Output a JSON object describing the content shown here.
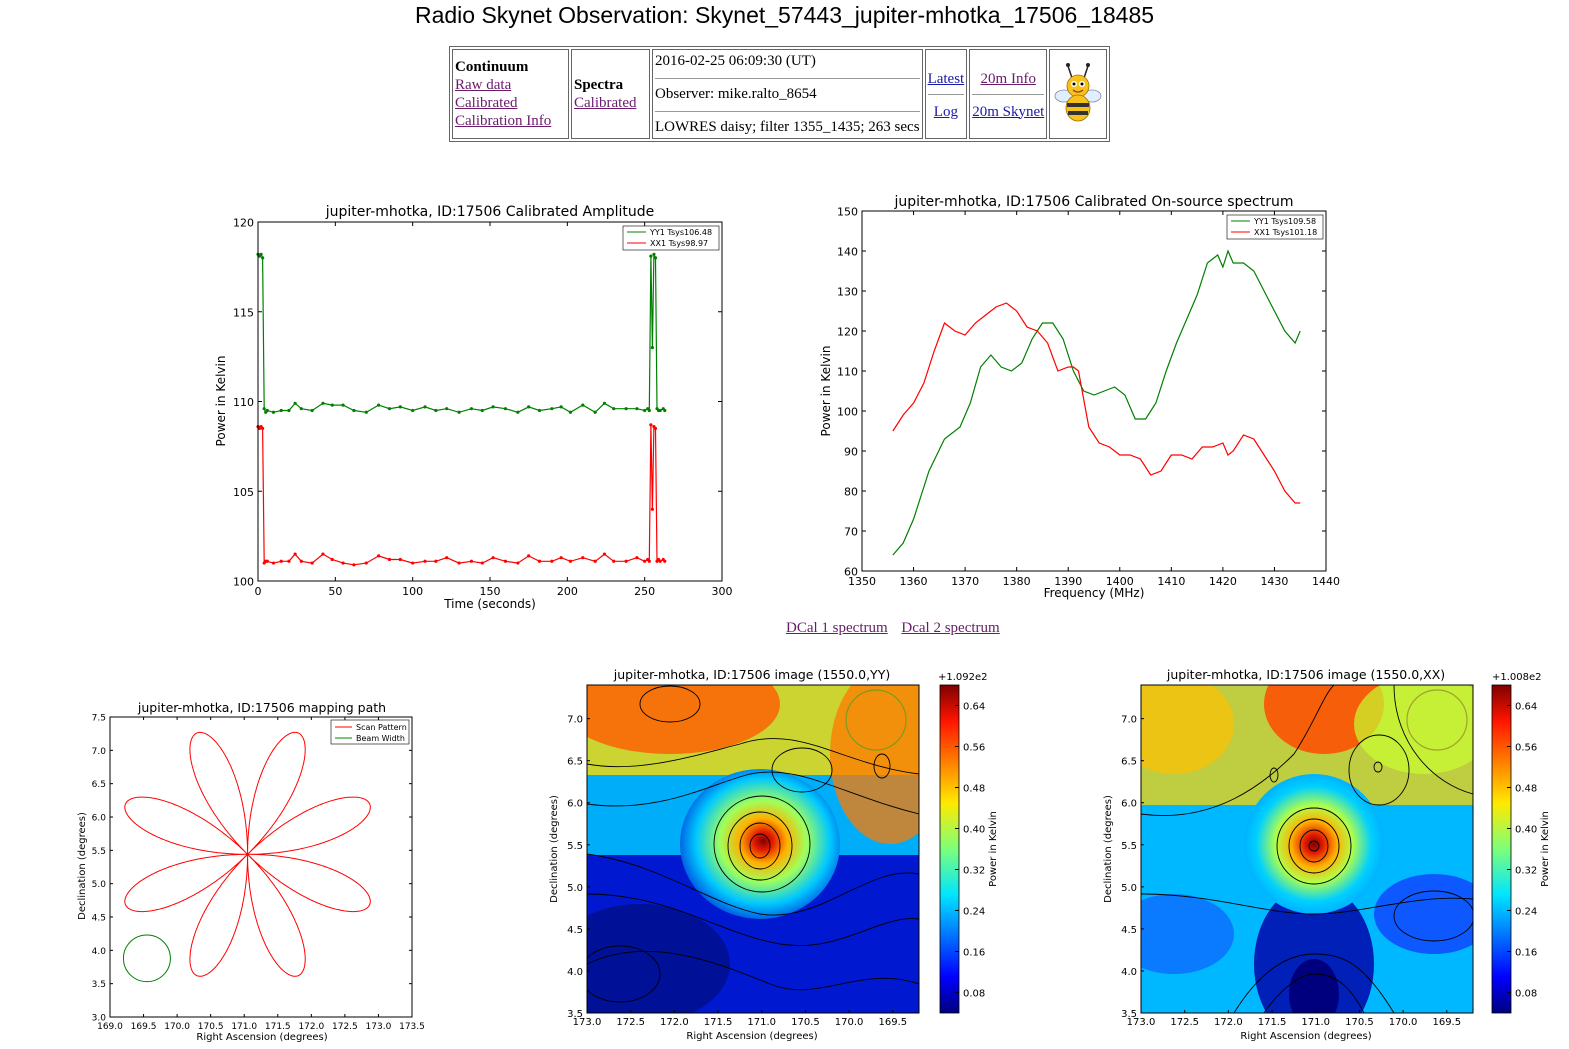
{
  "page": {
    "title": "Radio Skynet Observation: Skynet_57443_jupiter-mhotka_17506_18485"
  },
  "info_table": {
    "continuum": {
      "heading": "Continuum",
      "links": [
        "Raw data",
        "Calibrated",
        "Calibration Info"
      ]
    },
    "spectra": {
      "heading": "Spectra",
      "links": [
        "Calibrated"
      ]
    },
    "details": {
      "datetime": "2016-02-25 06:09:30 (UT)",
      "observer": "Observer: mike.ralto_8654",
      "summary": "LOWRES daisy; filter 1355_1435; 263 secs"
    },
    "nav": {
      "latest": "Latest",
      "log": "Log",
      "info_20m": "20m Info",
      "skynet_20m": "20m Skynet"
    },
    "logo_icon": "bee-mascot-icon"
  },
  "dcal_links": [
    "DCal 1 spectrum",
    "Dcal 2 spectrum"
  ],
  "chart_data": [
    {
      "type": "line",
      "title": "jupiter-mhotka, ID:17506 Calibrated Amplitude",
      "xlabel": "Time (seconds)",
      "ylabel": "Power in Kelvin",
      "xlim": [
        0,
        300
      ],
      "ylim": [
        100,
        120
      ],
      "xticks": [
        "0",
        "50",
        "100",
        "150",
        "200",
        "250",
        "300"
      ],
      "yticks": [
        "100",
        "105",
        "110",
        "115",
        "120"
      ],
      "legend": "top-right",
      "series": [
        {
          "name": "YY1 Tsys106.48",
          "color": "#008000",
          "x": [
            0,
            1,
            2,
            3,
            4,
            5,
            6,
            10,
            15,
            20,
            24,
            28,
            35,
            42,
            48,
            55,
            62,
            70,
            78,
            85,
            92,
            100,
            108,
            115,
            122,
            130,
            138,
            145,
            152,
            160,
            168,
            175,
            182,
            190,
            196,
            202,
            210,
            218,
            224,
            230,
            238,
            245,
            250,
            252,
            253,
            254,
            255,
            256,
            257,
            258,
            259,
            260,
            262,
            263
          ],
          "y": [
            118.2,
            118.1,
            118.2,
            118,
            109.6,
            109.4,
            109.5,
            109.4,
            109.5,
            109.5,
            109.9,
            109.6,
            109.5,
            109.9,
            109.8,
            109.8,
            109.5,
            109.4,
            109.8,
            109.6,
            109.7,
            109.5,
            109.7,
            109.5,
            109.6,
            109.4,
            109.6,
            109.5,
            109.7,
            109.6,
            109.4,
            109.7,
            109.5,
            109.6,
            109.7,
            109.4,
            109.8,
            109.4,
            109.9,
            109.6,
            109.6,
            109.6,
            109.5,
            109.6,
            109.5,
            118.1,
            113,
            118.2,
            118,
            109.6,
            109.5,
            109.5,
            109.6,
            109.5
          ]
        },
        {
          "name": "XX1 Tsys98.97",
          "color": "#ff0000",
          "x": [
            0,
            1,
            2,
            3,
            4,
            5,
            6,
            10,
            15,
            20,
            24,
            28,
            35,
            42,
            48,
            55,
            62,
            70,
            78,
            85,
            92,
            100,
            108,
            115,
            122,
            130,
            138,
            145,
            152,
            160,
            168,
            175,
            182,
            190,
            196,
            202,
            210,
            218,
            224,
            230,
            238,
            245,
            250,
            252,
            253,
            254,
            255,
            256,
            257,
            258,
            259,
            260,
            262,
            263
          ],
          "y": [
            108.6,
            108.5,
            108.6,
            108.5,
            101.0,
            101.1,
            101.1,
            101.0,
            101.1,
            101.1,
            101.5,
            101.1,
            101.0,
            101.5,
            101.2,
            101.0,
            100.9,
            101.0,
            101.4,
            101.2,
            101.2,
            101.0,
            101.1,
            101.1,
            101.3,
            101.0,
            101.1,
            101.0,
            101.3,
            101.1,
            101.0,
            101.4,
            101.1,
            101.1,
            101.3,
            101.1,
            101.3,
            101.1,
            101.5,
            101.1,
            101.1,
            101.3,
            101.1,
            101.2,
            101.1,
            108.7,
            104,
            108.6,
            108.5,
            101.1,
            101.2,
            101.1,
            101.2,
            101.1
          ]
        }
      ]
    },
    {
      "type": "line",
      "title": "jupiter-mhotka, ID:17506 Calibrated On-source spectrum",
      "xlabel": "Frequency (MHz)",
      "ylabel": "Power in Kelvin",
      "xlim": [
        1350,
        1440
      ],
      "ylim": [
        60,
        150
      ],
      "xticks": [
        "1350",
        "1360",
        "1370",
        "1380",
        "1390",
        "1400",
        "1410",
        "1420",
        "1430",
        "1440"
      ],
      "yticks": [
        "60",
        "70",
        "80",
        "90",
        "100",
        "110",
        "120",
        "130",
        "140",
        "150"
      ],
      "legend": "top-right",
      "series": [
        {
          "name": "YY1 Tsys109.58",
          "color": "#008000",
          "x": [
            1356,
            1358,
            1360,
            1363,
            1366,
            1369,
            1371,
            1373,
            1375,
            1377,
            1379,
            1381,
            1383,
            1385,
            1387,
            1389,
            1391,
            1393,
            1395,
            1397,
            1399,
            1401,
            1403,
            1405,
            1407,
            1409,
            1411,
            1413,
            1415,
            1417,
            1419,
            1420,
            1421,
            1422,
            1424,
            1426,
            1428,
            1430,
            1432,
            1434,
            1435
          ],
          "y": [
            64,
            67,
            73,
            85,
            93,
            96,
            102,
            111,
            114,
            111,
            110,
            112,
            118,
            122,
            122,
            118,
            110,
            105,
            104,
            105,
            106,
            104,
            98,
            98,
            102,
            110,
            117,
            123,
            129,
            137,
            139,
            136,
            140,
            137,
            137,
            135,
            130,
            125,
            120,
            117,
            120
          ]
        },
        {
          "name": "XX1 Tsys101.18",
          "color": "#ff0000",
          "x": [
            1356,
            1358,
            1360,
            1362,
            1364,
            1366,
            1368,
            1370,
            1372,
            1374,
            1376,
            1378,
            1380,
            1382,
            1384,
            1386,
            1388,
            1390,
            1391,
            1392,
            1394,
            1396,
            1398,
            1400,
            1402,
            1404,
            1406,
            1408,
            1410,
            1412,
            1414,
            1416,
            1418,
            1420,
            1421,
            1422,
            1424,
            1426,
            1428,
            1430,
            1432,
            1434,
            1435
          ],
          "y": [
            95,
            99,
            102,
            107,
            115,
            122,
            120,
            119,
            122,
            124,
            126,
            127,
            125,
            121,
            120,
            117,
            110,
            111,
            111,
            110,
            96,
            92,
            91,
            89,
            89,
            88,
            84,
            85,
            89,
            89,
            88,
            91,
            91,
            92,
            89,
            90,
            94,
            93,
            89,
            85,
            80,
            77,
            77
          ]
        }
      ]
    },
    {
      "type": "line",
      "title": "jupiter-mhotka, ID:17506 mapping path",
      "xlabel": "Right Ascension (degrees)",
      "ylabel": "Declination (degrees)",
      "xlim": [
        169.0,
        173.5
      ],
      "ylim": [
        3.0,
        7.5
      ],
      "xticks": [
        "169.0",
        "169.5",
        "170.0",
        "170.5",
        "171.0",
        "171.5",
        "172.0",
        "172.5",
        "173.0",
        "173.5"
      ],
      "yticks": [
        "3.0",
        "3.5",
        "4.0",
        "4.5",
        "5.0",
        "5.5",
        "6.0",
        "6.5",
        "7.0",
        "7.5"
      ],
      "legend": "top-right",
      "series": [
        {
          "name": "Scan Pattern",
          "color": "#ff0000",
          "center": [
            171.05,
            5.44
          ],
          "radius": 1.97,
          "petals": 8
        },
        {
          "name": "Beam Width",
          "color": "#008000",
          "center": [
            169.55,
            3.88
          ],
          "radius": 0.35
        }
      ]
    },
    {
      "type": "heatmap",
      "title": "jupiter-mhotka, ID:17506 image (1550.0,YY)",
      "xlabel": "Right Ascension (degrees)",
      "ylabel": "Declination (degrees)",
      "colorbar_label": "Power in Kelvin",
      "colorbar_offset": "+1.092e2",
      "colorbar_ticks": [
        "0.08",
        "0.16",
        "0.24",
        "0.32",
        "0.40",
        "0.48",
        "0.56",
        "0.64"
      ],
      "xticks": [
        "173.0",
        "172.5",
        "172.0",
        "171.5",
        "171.0",
        "170.5",
        "170.0",
        "169.5"
      ],
      "yticks": [
        "3.5",
        "4.0",
        "4.5",
        "5.0",
        "5.5",
        "6.0",
        "6.5",
        "7.0"
      ],
      "xlim": [
        173.0,
        169.2
      ],
      "ylim": [
        3.5,
        7.4
      ]
    },
    {
      "type": "heatmap",
      "title": "jupiter-mhotka, ID:17506 image (1550.0,XX)",
      "xlabel": "Right Ascension (degrees)",
      "ylabel": "Declination (degrees)",
      "colorbar_label": "Power in Kelvin",
      "colorbar_offset": "+1.008e2",
      "colorbar_ticks": [
        "0.08",
        "0.16",
        "0.24",
        "0.32",
        "0.40",
        "0.48",
        "0.56",
        "0.64"
      ],
      "xticks": [
        "173.0",
        "172.5",
        "172.0",
        "171.5",
        "171.0",
        "170.5",
        "170.0",
        "169.5"
      ],
      "yticks": [
        "3.5",
        "4.0",
        "4.5",
        "5.0",
        "5.5",
        "6.0",
        "6.5",
        "7.0"
      ],
      "xlim": [
        173.0,
        169.2
      ],
      "ylim": [
        3.5,
        7.4
      ]
    }
  ]
}
